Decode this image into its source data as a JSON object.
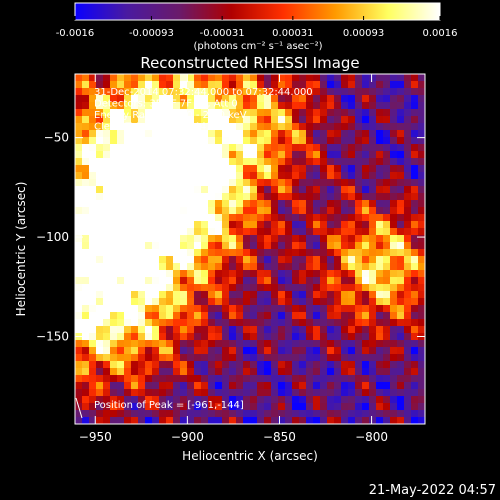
{
  "colorbar": {
    "ticks": [
      "-0.0016",
      "-0.00093",
      "-0.00031",
      "0.00031",
      "0.00093",
      "0.0016"
    ],
    "tick_values": [
      -0.0016,
      -0.00093,
      -0.00031,
      0.00031,
      0.00093,
      0.0016
    ],
    "range": [
      -0.0016,
      0.0016
    ],
    "unit_label": "(photons cm⁻² s⁻¹ asec⁻²)",
    "colors": [
      "#0a00ff",
      "#4a1aa0",
      "#6a1a6a",
      "#b00000",
      "#ff3000",
      "#ff9a00",
      "#ffff60",
      "#ffffff"
    ]
  },
  "chart_data": {
    "type": "heatmap",
    "title": "Reconstructed RHESSI Image",
    "xlabel": "Heliocentric X (arcsec)",
    "ylabel": "Heliocentric Y (arcsec)",
    "x_ticks": [
      -950,
      -900,
      -850,
      -800
    ],
    "y_ticks": [
      -50,
      -100,
      -150
    ],
    "xlim": [
      -961,
      -771
    ],
    "ylim": [
      -194,
      -18
    ],
    "grid": false,
    "info_lines": [
      "31-Dec-2014 07:32:44.000 to 07:32:44.000",
      "Detectors: 3F 6F 7F 8F, Att 0",
      "Energy Range: 12.0 - 25.0 keV",
      "Clean    Total Counts: 441."
    ],
    "peak_text": "Position of Peak = [-961,-144]",
    "peak": [
      -961,
      -144
    ],
    "sources": [
      {
        "x": -925,
        "y": -75,
        "sigma": 40,
        "amplitude": 1.0
      },
      {
        "x": -900,
        "y": -55,
        "sigma": 30,
        "amplitude": 0.7
      },
      {
        "x": -950,
        "y": -130,
        "sigma": 32,
        "amplitude": 0.9
      },
      {
        "x": -795,
        "y": -115,
        "sigma": 22,
        "amplitude": 0.8
      },
      {
        "x": -850,
        "y": -40,
        "sigma": 20,
        "amplitude": 0.35
      }
    ]
  },
  "footer": {
    "timestamp": "21-May-2022 04:57"
  }
}
